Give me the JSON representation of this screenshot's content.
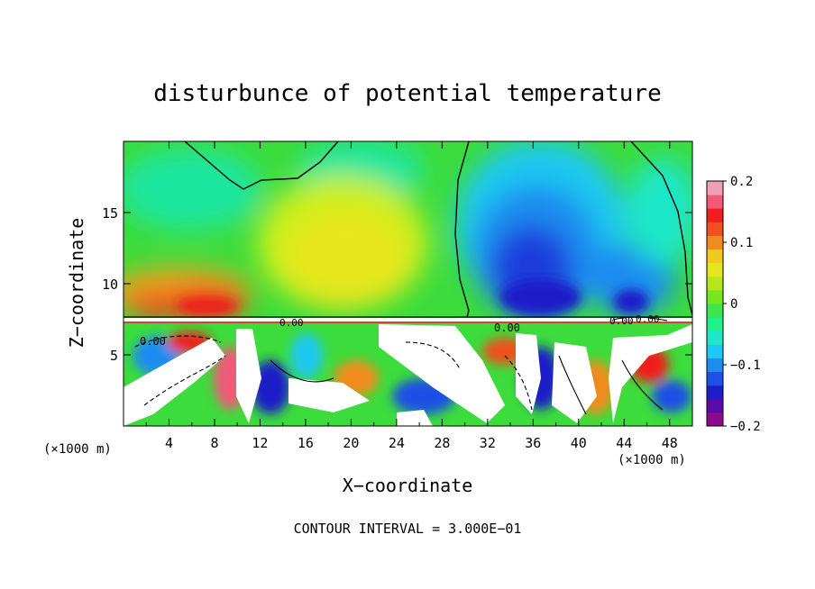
{
  "chart_data": {
    "type": "heatmap",
    "title": "disturbunce of potential temperature",
    "xlabel": "X−coordinate",
    "ylabel": "Z−coordinate",
    "x_unit_left": "(×1000 m)",
    "x_unit_right": "(×1000 m)",
    "xlim": [
      0,
      50
    ],
    "ylim": [
      0,
      20
    ],
    "x_ticks": [
      4,
      8,
      12,
      16,
      20,
      24,
      28,
      32,
      36,
      40,
      44,
      48
    ],
    "x_tick_labels": [
      "4",
      "8",
      "12",
      "16",
      "20",
      "24",
      "28",
      "32",
      "36",
      "40",
      "44",
      "48"
    ],
    "y_ticks": [
      5,
      10,
      15
    ],
    "y_tick_labels": [
      "5",
      "10",
      "15"
    ],
    "colorbar": {
      "range": [
        -0.2,
        0.2
      ],
      "ticks": [
        0.2,
        0.1,
        0,
        -0.1,
        -0.2
      ],
      "tick_labels": [
        "0.2",
        "0.1",
        "0",
        "−0.1",
        "−0.2"
      ],
      "colors": [
        "#8c0a8c",
        "#5a0aa8",
        "#1e1ec8",
        "#1e50e6",
        "#1e8cf0",
        "#1ec8f0",
        "#1ee6c8",
        "#1ef08c",
        "#3ce650",
        "#78e61e",
        "#b4e61e",
        "#e6e61e",
        "#f0c81e",
        "#f08c1e",
        "#f0501e",
        "#f01e1e",
        "#f05a78",
        "#f0a0b4"
      ]
    },
    "contour_labels": [
      "0.00",
      "0.00",
      "0.00",
      "0.00",
      "0.00"
    ],
    "footer": "CONTOUR INTERVAL = 3.000E−01",
    "field_regions": [
      {
        "x": [
          0,
          50
        ],
        "z": [
          7.5,
          20
        ],
        "value": 0.02
      },
      {
        "x": [
          2,
          11
        ],
        "z": [
          7.5,
          10.5
        ],
        "value": 0.13
      },
      {
        "x": [
          16,
          26
        ],
        "z": [
          7.5,
          15
        ],
        "value": 0.07
      },
      {
        "x": [
          30,
          46
        ],
        "z": [
          7.5,
          18
        ],
        "value": -0.15
      },
      {
        "x": [
          31,
          40
        ],
        "z": [
          7.5,
          14
        ],
        "value": -0.19
      },
      {
        "x": [
          0,
          50
        ],
        "z": [
          0,
          7.5
        ],
        "value": 0.0
      }
    ]
  }
}
